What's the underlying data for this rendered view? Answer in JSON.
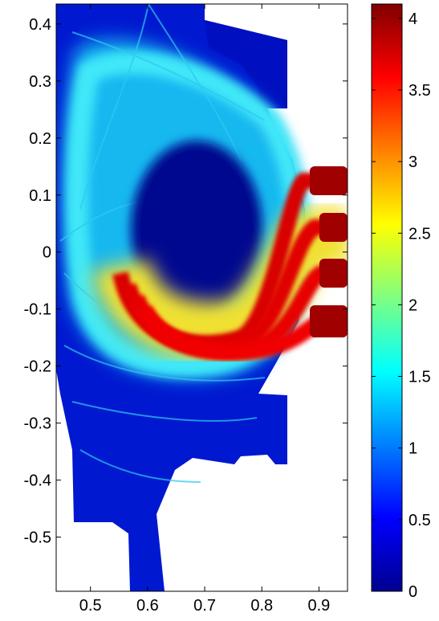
{
  "chart_data": {
    "type": "heatmap",
    "title": "",
    "xlabel": "",
    "ylabel": "",
    "xlim": [
      0.44,
      0.95
    ],
    "ylim": [
      -0.595,
      0.435
    ],
    "x_ticks": [
      "0.5",
      "0.6",
      "0.7",
      "0.8",
      "0.9"
    ],
    "x_tick_values": [
      0.5,
      0.6,
      0.7,
      0.8,
      0.9
    ],
    "y_ticks": [
      "0.4",
      "0.3",
      "0.2",
      "0.1",
      "0",
      "-0.1",
      "-0.2",
      "-0.3",
      "-0.4",
      "-0.5"
    ],
    "y_tick_values": [
      0.4,
      0.3,
      0.2,
      0.1,
      0,
      -0.1,
      -0.2,
      -0.3,
      -0.4,
      -0.5
    ],
    "colorbar": {
      "range": [
        0,
        4.1
      ],
      "ticks": [
        "0",
        "0.5",
        "1",
        "1.5",
        "2",
        "2.5",
        "3",
        "3.5",
        "4"
      ],
      "tick_values": [
        0,
        0.5,
        1,
        1.5,
        2,
        2.5,
        3,
        3.5,
        4
      ],
      "colormap": "jet"
    },
    "features": {
      "core_value": 0.1,
      "edge_value": 1.3,
      "beam_value": 4.0,
      "beam_entry_y": [
        0.12,
        0.04,
        -0.04,
        -0.12
      ]
    }
  },
  "colors": {
    "background": "#ffffff",
    "frame": "#000000",
    "low": "#00008f",
    "high": "#800000"
  }
}
